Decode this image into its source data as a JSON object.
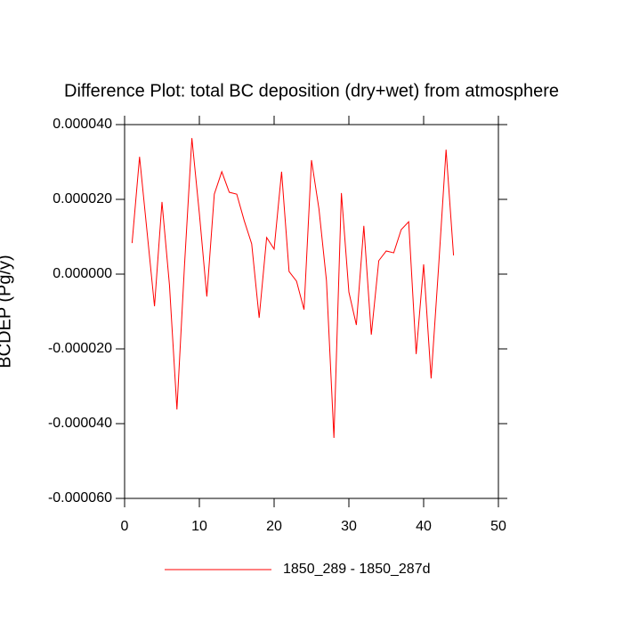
{
  "chart_data": {
    "type": "line",
    "title": "Difference Plot: total BC deposition (dry+wet) from atmosphere",
    "y_label": "BCDEP (Pg/y)",
    "x": [
      1,
      2,
      3,
      4,
      5,
      6,
      7,
      8,
      9,
      10,
      11,
      12,
      13,
      14,
      15,
      16,
      17,
      18,
      19,
      20,
      21,
      22,
      23,
      24,
      25,
      26,
      27,
      28,
      29,
      30,
      31,
      32,
      33,
      34,
      35,
      36,
      37,
      38,
      39,
      40,
      41,
      42,
      43,
      44
    ],
    "series": [
      {
        "name": "1850_289 - 1850_287d",
        "color": "#ff0000",
        "values": [
          8.3e-06,
          3.14e-05,
          1.14e-05,
          -8.6e-06,
          1.93e-05,
          -2.9e-06,
          -3.62e-05,
          1.9e-06,
          3.64e-05,
          1.62e-05,
          -6e-06,
          2.14e-05,
          2.74e-05,
          2.19e-05,
          2.14e-05,
          1.43e-05,
          8.1e-06,
          -1.17e-05,
          9.8e-06,
          6.7e-06,
          2.74e-05,
          7e-07,
          -1.9e-06,
          -9.5e-06,
          3.05e-05,
          1.74e-05,
          -1.7e-06,
          -4.38e-05,
          2.17e-05,
          -4.8e-06,
          -1.36e-05,
          1.29e-05,
          -1.62e-05,
          3.6e-06,
          6.2e-06,
          5.7e-06,
          1.19e-05,
          1.4e-05,
          -2.14e-05,
          2.6e-06,
          -2.79e-05,
          1.9e-06,
          3.33e-05,
          5e-06
        ]
      }
    ],
    "xlim": [
      0,
      50
    ],
    "xticks": [
      0,
      10,
      20,
      30,
      40,
      50
    ],
    "ylim": [
      -6e-05,
      4e-05
    ],
    "yticks": [
      {
        "value": -6e-05,
        "label": "-0.000060"
      },
      {
        "value": -4e-05,
        "label": "-0.000040"
      },
      {
        "value": -2e-05,
        "label": "-0.000020"
      },
      {
        "value": 0,
        "label": "0.000000"
      },
      {
        "value": 2e-05,
        "label": "0.000020"
      },
      {
        "value": 4e-05,
        "label": "0.000040"
      }
    ],
    "grid": false
  }
}
